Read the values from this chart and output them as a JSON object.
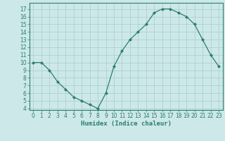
{
  "x": [
    0,
    1,
    2,
    3,
    4,
    5,
    6,
    7,
    8,
    9,
    10,
    11,
    12,
    13,
    14,
    15,
    16,
    17,
    18,
    19,
    20,
    21,
    22,
    23
  ],
  "y": [
    10,
    10,
    9,
    7.5,
    6.5,
    5.5,
    5,
    4.5,
    4,
    6,
    9.5,
    11.5,
    13,
    14,
    15,
    16.5,
    17,
    17,
    16.5,
    16,
    15,
    13,
    11,
    9.5
  ],
  "line_color": "#2e7d6e",
  "marker": "D",
  "marker_size": 2,
  "bg_color": "#cce8e8",
  "grid_color": "#aacccc",
  "xlabel": "Humidex (Indice chaleur)",
  "xlim": [
    -0.5,
    23.5
  ],
  "ylim": [
    3.8,
    17.8
  ],
  "yticks": [
    4,
    5,
    6,
    7,
    8,
    9,
    10,
    11,
    12,
    13,
    14,
    15,
    16,
    17
  ],
  "xticks": [
    0,
    1,
    2,
    3,
    4,
    5,
    6,
    7,
    8,
    9,
    10,
    11,
    12,
    13,
    14,
    15,
    16,
    17,
    18,
    19,
    20,
    21,
    22,
    23
  ],
  "axis_color": "#2e7d6e",
  "tick_color": "#2e7d6e",
  "label_color": "#2e7d6e",
  "label_fontsize": 6.5,
  "tick_fontsize": 5.5
}
